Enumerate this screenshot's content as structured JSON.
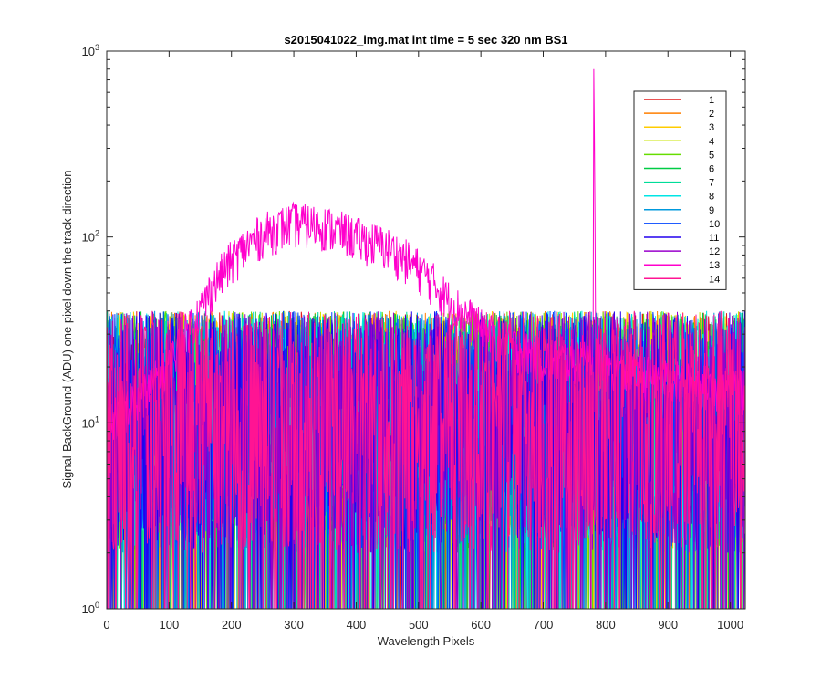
{
  "chart_data": {
    "type": "line",
    "title": "s2015041022_img.mat int time = 5 sec  320 nm BS1",
    "xlabel": "Wavelength Pixels",
    "ylabel": "Signal-BackGround (ADU) one pixel down the track direction",
    "xlim": [
      0,
      1024
    ],
    "ylim": [
      1,
      1000
    ],
    "yscale": "log",
    "grid": false,
    "legend_position": "top-right",
    "x_ticks": [
      0,
      100,
      200,
      300,
      400,
      500,
      600,
      700,
      800,
      900,
      1000
    ],
    "y_ticks": [
      {
        "base": "10",
        "exp": "0",
        "value": 1
      },
      {
        "base": "10",
        "exp": "1",
        "value": 10
      },
      {
        "base": "10",
        "exp": "2",
        "value": 100
      },
      {
        "base": "10",
        "exp": "3",
        "value": 1000
      }
    ],
    "n_points": 1024,
    "series": [
      {
        "name": "1",
        "color": "#e31a1c",
        "baseline": 12
      },
      {
        "name": "2",
        "color": "#ff7f00",
        "baseline": 12
      },
      {
        "name": "3",
        "color": "#ffcc00",
        "baseline": 12
      },
      {
        "name": "4",
        "color": "#c8e600",
        "baseline": 12
      },
      {
        "name": "5",
        "color": "#66dd00",
        "baseline": 12
      },
      {
        "name": "6",
        "color": "#00cc44",
        "baseline": 12
      },
      {
        "name": "7",
        "color": "#00dd99",
        "baseline": 12
      },
      {
        "name": "8",
        "color": "#00e5e5",
        "baseline": 12
      },
      {
        "name": "9",
        "color": "#0099dd",
        "baseline": 12
      },
      {
        "name": "10",
        "color": "#0044ff",
        "baseline": 12
      },
      {
        "name": "11",
        "color": "#2200ee",
        "baseline": 12
      },
      {
        "name": "12",
        "color": "#9900cc",
        "baseline": 12
      },
      {
        "name": "13",
        "color": "#ff00cc",
        "baseline": 12,
        "profile": [
          [
            0,
            10
          ],
          [
            50,
            13
          ],
          [
            100,
            20
          ],
          [
            150,
            40
          ],
          [
            200,
            75
          ],
          [
            250,
            105
          ],
          [
            300,
            120
          ],
          [
            350,
            115
          ],
          [
            400,
            100
          ],
          [
            450,
            88
          ],
          [
            500,
            68
          ],
          [
            550,
            45
          ],
          [
            600,
            32
          ],
          [
            650,
            26
          ],
          [
            700,
            22
          ],
          [
            750,
            22
          ],
          [
            780,
            25
          ],
          [
            800,
            20
          ],
          [
            900,
            17
          ],
          [
            1023,
            15
          ]
        ],
        "peaks": [
          {
            "x": 781,
            "y": 800
          },
          {
            "x": 782,
            "y": 350
          },
          {
            "x": 783,
            "y": 120
          }
        ]
      },
      {
        "name": "14",
        "color": "#ff1493",
        "baseline": 12
      }
    ]
  }
}
